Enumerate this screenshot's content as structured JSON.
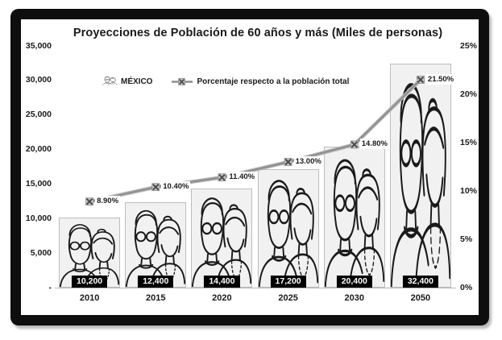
{
  "chart_data": {
    "type": "bar+line",
    "title": "Proyecciones de Población de 60 años y más (Miles de personas)",
    "categories": [
      "2010",
      "2015",
      "2020",
      "2025",
      "2030",
      "2050"
    ],
    "series": [
      {
        "name": "MÉXICO",
        "type": "bar",
        "axis": "left",
        "values": [
          10200,
          12400,
          14400,
          17200,
          20400,
          32400
        ],
        "labels": [
          "10,200",
          "12,400",
          "14,400",
          "17,200",
          "20,400",
          "32,400"
        ]
      },
      {
        "name": "Porcentaje respecto a la población total",
        "type": "line",
        "axis": "right",
        "values": [
          8.9,
          10.4,
          11.4,
          13.0,
          14.8,
          21.5
        ],
        "labels": [
          "8.90%",
          "10.40%",
          "11.40%",
          "13.00%",
          "14.80%",
          "21.50%"
        ]
      }
    ],
    "left_axis": {
      "min": 0,
      "max": 35000,
      "ticks": [
        "35,000",
        "30,000",
        "25,000",
        "20,000",
        "15,000",
        "10,000",
        "5,000",
        "-"
      ]
    },
    "right_axis": {
      "min": 0,
      "max": 25,
      "ticks": [
        "25%",
        "20%",
        "15%",
        "10%",
        "5%",
        "0%"
      ]
    },
    "grid": false,
    "legend_position": "top-center-inside"
  },
  "colors": {
    "frame": "#0e0e0e",
    "bar_fill": "#f1f1f1",
    "bar_border": "#bdbdbd",
    "figure_stroke": "#1a1a1a",
    "line_outer": "#b2b2b2",
    "line_core": "#8d8d8d",
    "marker_x": "#4a4a4a",
    "marker_bg": "#c9c9c9",
    "value_box_bg": "#000000",
    "value_box_text": "#ffffff"
  }
}
